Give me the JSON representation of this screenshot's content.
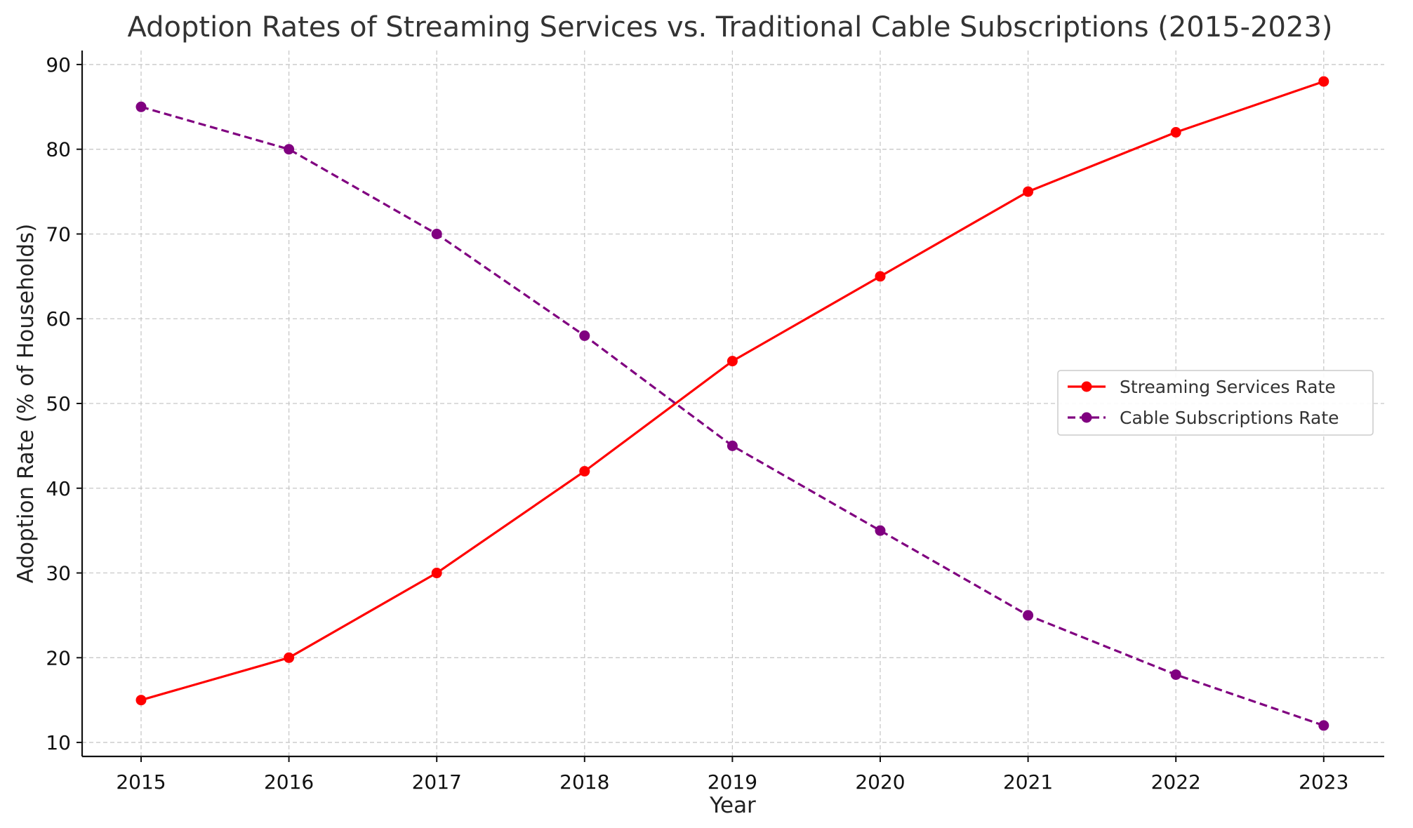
{
  "chart_data": {
    "type": "line",
    "title": "Adoption Rates of Streaming Services vs. Traditional Cable Subscriptions (2015-2023)",
    "xlabel": "Year",
    "ylabel": "Adoption Rate (% of Households)",
    "categories": [
      "2015",
      "2016",
      "2017",
      "2018",
      "2019",
      "2020",
      "2021",
      "2022",
      "2023"
    ],
    "yticks": [
      "10",
      "20",
      "30",
      "40",
      "50",
      "60",
      "70",
      "80",
      "90"
    ],
    "ylim": [
      8.35,
      91.65
    ],
    "grid": true,
    "legend_position": "center-right",
    "series": [
      {
        "name": "Streaming Services Rate",
        "color": "#ff0000",
        "style": "solid",
        "values": [
          15,
          20,
          30,
          42,
          55,
          65,
          75,
          82,
          88
        ]
      },
      {
        "name": "Cable Subscriptions Rate",
        "color": "#800080",
        "style": "dashed",
        "values": [
          85,
          80,
          70,
          58,
          45,
          35,
          25,
          18,
          12
        ]
      }
    ]
  }
}
